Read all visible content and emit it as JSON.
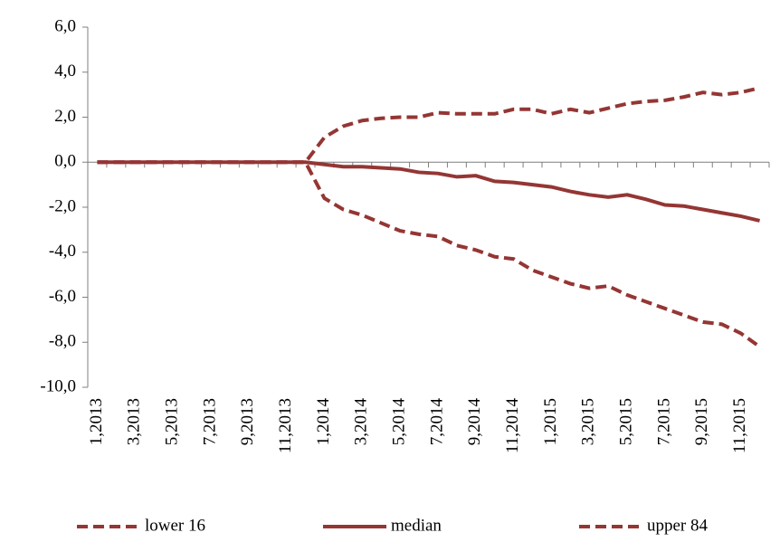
{
  "chart_data": {
    "type": "line",
    "categories": [
      "1,2013",
      null,
      "3,2013",
      null,
      "5,2013",
      null,
      "7,2013",
      null,
      "9,2013",
      null,
      "11,2013",
      null,
      "1,2014",
      null,
      "3,2014",
      null,
      "5,2014",
      null,
      "7,2014",
      null,
      "9,2014",
      null,
      "11,2014",
      null,
      "1,2015",
      null,
      "3,2015",
      null,
      "5,2015",
      null,
      "7,2015",
      null,
      "9,2015",
      null,
      "11,2015",
      null
    ],
    "series": [
      {
        "name": "lower 16",
        "color": "#943634",
        "dashed": true,
        "values": [
          0,
          0,
          0,
          0,
          0,
          0,
          0,
          0,
          0,
          0,
          0,
          0,
          -1.6,
          -2.1,
          -2.35,
          -2.7,
          -3.05,
          -3.2,
          -3.3,
          -3.7,
          -3.9,
          -4.2,
          -4.3,
          -4.8,
          -5.1,
          -5.4,
          -5.6,
          -5.5,
          -5.9,
          -6.2,
          -6.5,
          -6.8,
          -7.1,
          -7.2,
          -7.6,
          -8.2
        ]
      },
      {
        "name": "median",
        "color": "#943634",
        "dashed": false,
        "values": [
          0,
          0,
          0,
          0,
          0,
          0,
          0,
          0,
          0,
          0,
          0,
          0,
          -0.1,
          -0.2,
          -0.2,
          -0.25,
          -0.3,
          -0.45,
          -0.5,
          -0.65,
          -0.6,
          -0.85,
          -0.9,
          -1.0,
          -1.1,
          -1.3,
          -1.45,
          -1.55,
          -1.45,
          -1.65,
          -1.9,
          -1.95,
          -2.1,
          -2.25,
          -2.4,
          -2.6
        ]
      },
      {
        "name": "upper 84",
        "color": "#943634",
        "dashed": true,
        "values": [
          0,
          0,
          0,
          0,
          0,
          0,
          0,
          0,
          0,
          0,
          0,
          0,
          1.1,
          1.6,
          1.85,
          1.95,
          2.0,
          2.0,
          2.2,
          2.15,
          2.15,
          2.15,
          2.35,
          2.35,
          2.15,
          2.35,
          2.2,
          2.4,
          2.6,
          2.7,
          2.75,
          2.9,
          3.1,
          3.0,
          3.1,
          3.3
        ]
      }
    ],
    "ylim": [
      -10,
      6
    ],
    "yticks": [
      {
        "value": -10,
        "label": "-10,0"
      },
      {
        "value": -8,
        "label": "-8,0"
      },
      {
        "value": -6,
        "label": "-6,0"
      },
      {
        "value": -4,
        "label": "-4,0"
      },
      {
        "value": -2,
        "label": "-2,0"
      },
      {
        "value": 0,
        "label": "0,0"
      },
      {
        "value": 2,
        "label": "2,0"
      },
      {
        "value": 4,
        "label": "4,0"
      },
      {
        "value": 6,
        "label": "6,0"
      }
    ],
    "legend": "bottom"
  }
}
